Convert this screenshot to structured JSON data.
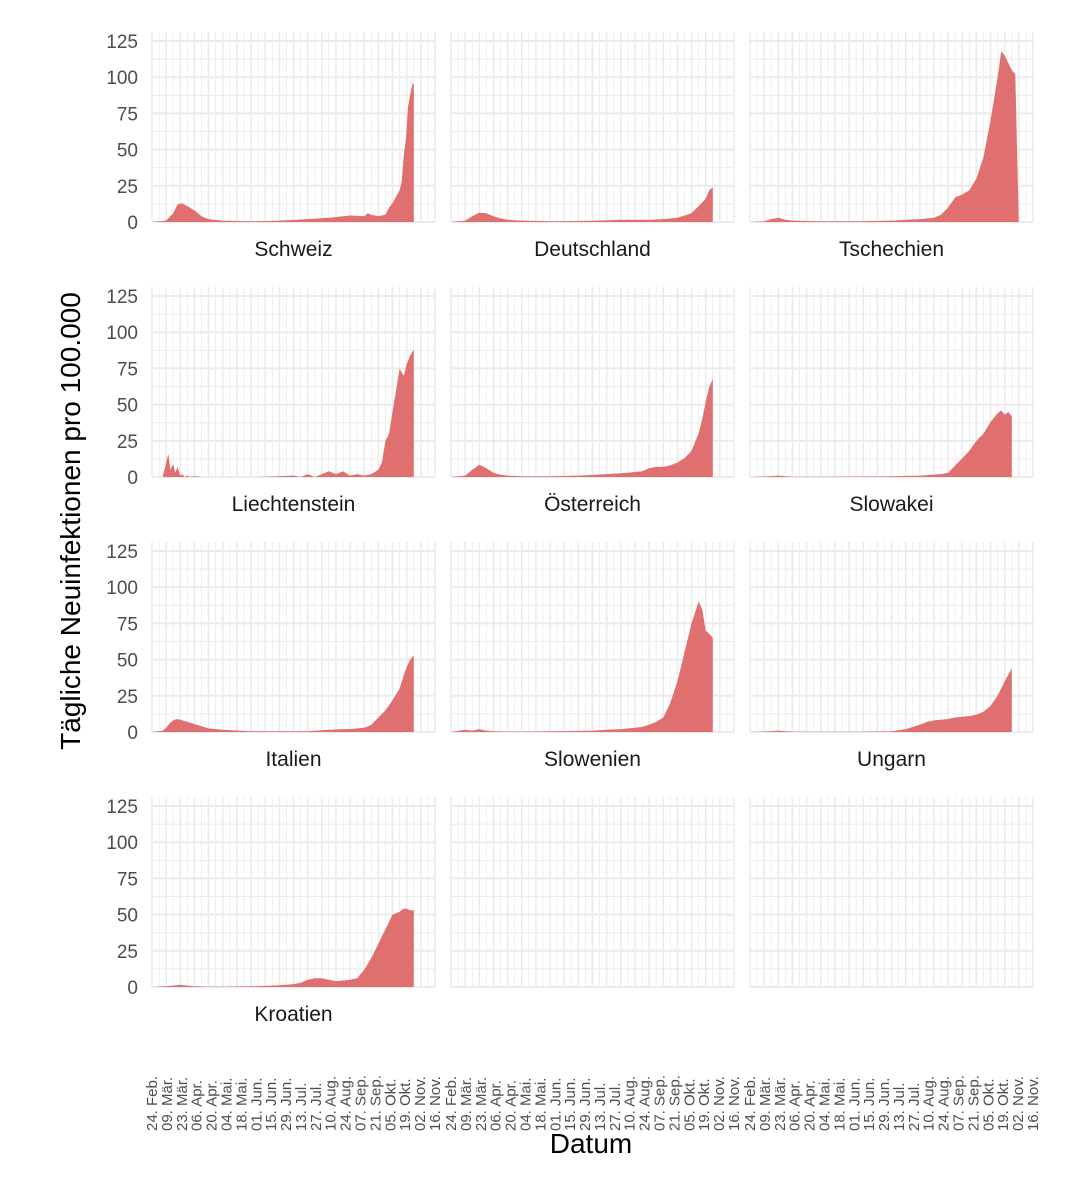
{
  "chart_data": {
    "type": "area",
    "facet": "small-multiples",
    "xlabel": "Datum",
    "ylabel": "Tägliche Neuinfektionen pro 100.000",
    "ylim": [
      0,
      125
    ],
    "yticks": [
      0,
      25,
      50,
      75,
      100,
      125
    ],
    "x_tick_labels": [
      "24. Feb.",
      "09. Mär.",
      "23. Mär.",
      "06. Apr.",
      "20. Apr.",
      "04. Mai.",
      "18. Mai.",
      "01. Jun.",
      "15. Jun.",
      "29. Jun.",
      "13. Jul.",
      "27. Jul.",
      "10. Aug.",
      "24. Aug.",
      "07. Sep.",
      "21. Sep.",
      "05. Okt.",
      "19. Okt.",
      "02. Nov.",
      "16. Nov."
    ],
    "x_domain_weeks": [
      0,
      40
    ],
    "fill_color": "#e07070",
    "grid": true,
    "series": [
      {
        "name": "Schweiz",
        "x_weeks": [
          0,
          2,
          3,
          3.6,
          4.2,
          5,
          6,
          7,
          8,
          10,
          14,
          18,
          22,
          25,
          28,
          30,
          30.5,
          31,
          32,
          33,
          33.5,
          34,
          35,
          35.3,
          35.6,
          35.9,
          36.2,
          36.5,
          36.8,
          37
        ],
        "values": [
          0,
          1,
          6,
          12,
          13,
          11,
          8,
          4,
          2,
          1,
          0.5,
          1,
          2,
          3,
          4.5,
          4,
          6,
          5,
          4,
          5,
          10,
          13,
          22,
          28,
          47,
          58,
          80,
          88,
          95,
          96
        ]
      },
      {
        "name": "Deutschland",
        "x_weeks": [
          0,
          2,
          3,
          4,
          5,
          6,
          7,
          8,
          10,
          15,
          20,
          24,
          28,
          30,
          32,
          34,
          35,
          36,
          36.5,
          37
        ],
        "values": [
          0,
          1,
          4,
          6.5,
          6,
          4,
          2.5,
          1.5,
          1,
          0.5,
          0.8,
          1.5,
          1.6,
          2,
          3,
          6,
          11,
          16,
          22,
          24
        ]
      },
      {
        "name": "Tschechien",
        "x_weeks": [
          0,
          2,
          3,
          4,
          5,
          6,
          10,
          15,
          20,
          22,
          24,
          26,
          27,
          28,
          29,
          30,
          31,
          32,
          33,
          34,
          35,
          35.5,
          36,
          36.5,
          37,
          37.5,
          38
        ],
        "values": [
          0,
          0.5,
          2,
          3,
          1.5,
          1,
          0.5,
          0.5,
          1,
          1.5,
          2,
          3,
          5,
          10,
          17,
          19,
          22,
          30,
          45,
          70,
          100,
          118,
          115,
          110,
          105,
          102,
          0
        ]
      },
      {
        "name": "Liechtenstein",
        "x_weeks": [
          0,
          1.5,
          2,
          2.3,
          2.6,
          3,
          3.3,
          3.6,
          4,
          4.3,
          4.6,
          5,
          5.3,
          6,
          7,
          10,
          15,
          20,
          21,
          22,
          23,
          24,
          25,
          26,
          27,
          28,
          29,
          30,
          31,
          32,
          32.5,
          33,
          33.5,
          34,
          34.5,
          35,
          35.3,
          35.6,
          36,
          36.5,
          37
        ],
        "values": [
          0,
          0,
          10,
          16,
          5,
          9,
          3,
          7,
          1,
          2,
          0,
          1,
          0,
          0.5,
          0,
          0,
          0,
          1,
          0,
          2,
          0,
          2,
          4,
          2,
          4,
          1,
          2,
          1,
          2,
          5,
          10,
          25,
          30,
          45,
          60,
          75,
          72,
          70,
          78,
          84,
          88
        ]
      },
      {
        "name": "Österreich",
        "x_weeks": [
          0,
          2,
          3,
          4,
          5,
          6,
          7,
          8,
          10,
          14,
          18,
          22,
          25,
          27,
          28,
          29,
          30,
          31,
          32,
          33,
          34,
          35,
          35.5,
          36,
          36.5,
          37
        ],
        "values": [
          0,
          1,
          5,
          8.5,
          6,
          3,
          1.5,
          1,
          0.5,
          0.5,
          1,
          2,
          3,
          4,
          6,
          7,
          7,
          8,
          10,
          13,
          18,
          30,
          40,
          52,
          62,
          68
        ]
      },
      {
        "name": "Slowakei",
        "x_weeks": [
          0,
          3,
          4,
          5,
          6,
          10,
          15,
          20,
          24,
          27,
          28,
          29,
          30,
          31,
          32,
          33,
          34,
          35,
          35.5,
          36,
          36.5,
          37
        ],
        "values": [
          0,
          0.5,
          1,
          0.5,
          0.2,
          0.2,
          0.3,
          0.5,
          1,
          2,
          3,
          8,
          13,
          18,
          25,
          30,
          38,
          44,
          46,
          43,
          45,
          42
        ]
      },
      {
        "name": "Italien",
        "x_weeks": [
          0,
          1.5,
          2,
          2.5,
          3,
          3.5,
          4,
          5,
          6,
          7,
          8,
          10,
          14,
          18,
          22,
          25,
          27,
          28,
          29,
          30,
          31,
          32,
          33,
          34,
          35,
          35.5,
          36,
          36.5,
          37
        ],
        "values": [
          0,
          1,
          3,
          6,
          8,
          9,
          8.5,
          7,
          5.5,
          4,
          2.5,
          1.5,
          0.5,
          0.5,
          0.5,
          1.5,
          2,
          2,
          2.5,
          3,
          5,
          10,
          15,
          22,
          30,
          38,
          45,
          50,
          53
        ]
      },
      {
        "name": "Slowenien",
        "x_weeks": [
          0,
          2,
          3,
          4,
          5,
          6,
          8,
          10,
          15,
          20,
          22,
          24,
          26,
          27,
          28,
          29,
          30,
          31,
          32,
          33,
          34,
          35,
          35.5,
          36,
          36.5,
          37
        ],
        "values": [
          0,
          1.5,
          1,
          2,
          1,
          0.5,
          0.3,
          0.3,
          0.5,
          1,
          1.5,
          2,
          3,
          3.5,
          5,
          7,
          10,
          20,
          35,
          55,
          75,
          90,
          85,
          70,
          68,
          65
        ]
      },
      {
        "name": "Ungarn",
        "x_weeks": [
          0,
          3,
          4,
          5,
          6,
          10,
          15,
          20,
          22,
          24,
          25,
          26,
          27,
          28,
          29,
          30,
          31,
          32,
          33,
          34,
          35,
          36,
          37
        ],
        "values": [
          0,
          0.5,
          1,
          0.5,
          0.3,
          0.2,
          0.2,
          0.5,
          2,
          5,
          7,
          8,
          8.5,
          9,
          10,
          10.5,
          11,
          12,
          14,
          18,
          25,
          35,
          44
        ]
      },
      {
        "name": "Kroatien",
        "x_weeks": [
          0,
          2,
          3,
          4,
          5,
          6,
          8,
          10,
          14,
          17,
          19,
          20,
          21,
          22,
          23,
          24,
          25,
          26,
          27,
          28,
          29,
          30,
          31,
          32,
          33,
          34,
          35,
          35.5,
          36,
          36.5,
          37
        ],
        "values": [
          0,
          0.5,
          1,
          1.5,
          1,
          0.5,
          0.3,
          0.2,
          0.5,
          1,
          1.5,
          2,
          3,
          5,
          6,
          6,
          5,
          4,
          4.5,
          5,
          6,
          12,
          20,
          30,
          40,
          50,
          52,
          54,
          54,
          53,
          53
        ]
      },
      {
        "name": "",
        "x_weeks": [],
        "values": []
      },
      {
        "name": "",
        "x_weeks": [],
        "values": []
      }
    ]
  }
}
